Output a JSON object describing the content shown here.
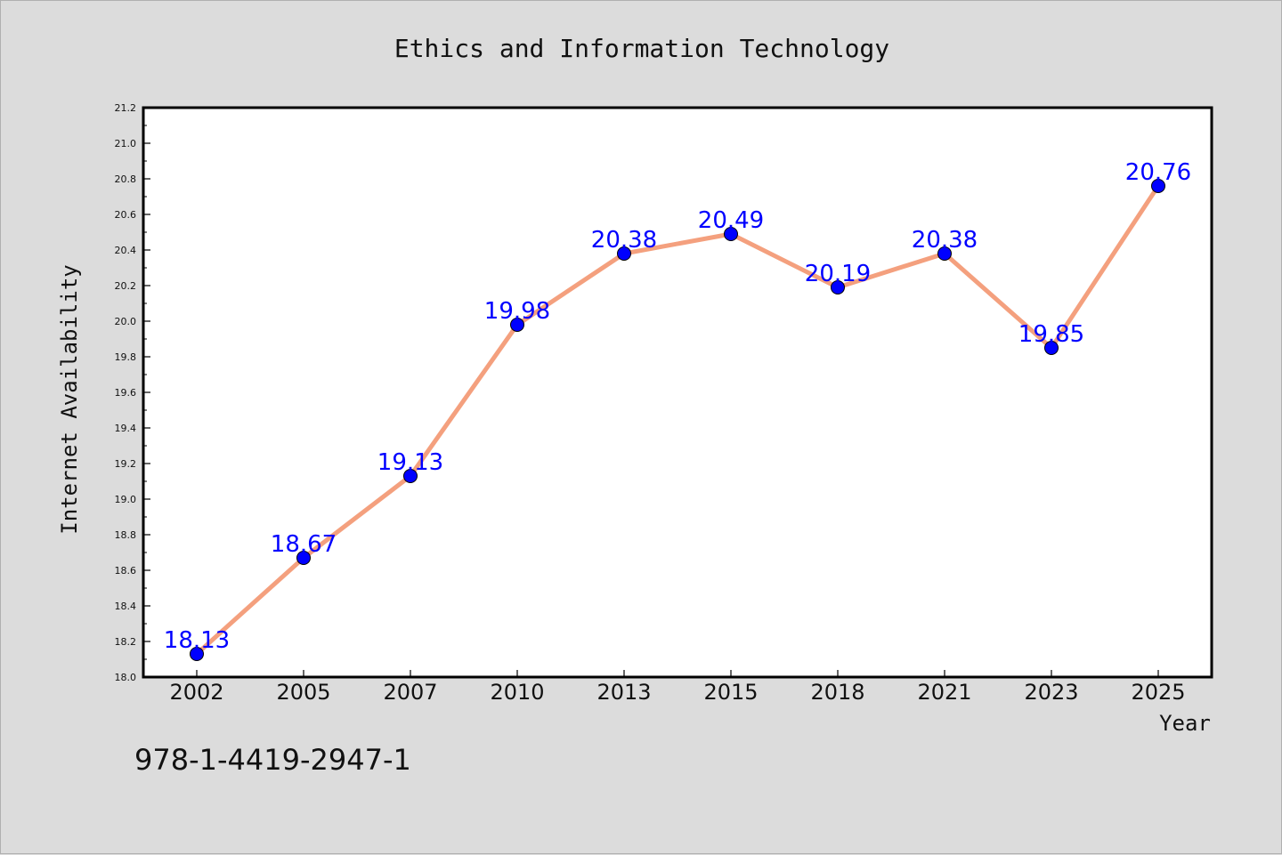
{
  "footer": {
    "isbn": "978-1-4419-2947-1"
  },
  "chart_data": {
    "type": "line",
    "title": "Ethics and Information Technology",
    "xlabel": "Year",
    "ylabel": "Internet Availability",
    "categories": [
      "2002",
      "2005",
      "2007",
      "2010",
      "2013",
      "2015",
      "2018",
      "2021",
      "2023",
      "2025"
    ],
    "series": [
      {
        "values": [
          18.13,
          18.67,
          19.13,
          19.98,
          20.38,
          20.49,
          20.19,
          20.38,
          19.85,
          20.76
        ]
      }
    ],
    "data_labels": [
      "18.13",
      "18.67",
      "19.13",
      "19.98",
      "20.38",
      "20.49",
      "20.19",
      "20.38",
      "19.85",
      "20.76"
    ],
    "yticks": [
      "18.0",
      "18.2",
      "18.4",
      "18.6",
      "18.8",
      "19.0",
      "19.2",
      "19.4",
      "19.6",
      "19.8",
      "20.0",
      "20.2",
      "20.4",
      "20.6",
      "20.8",
      "21.0",
      "21.2"
    ],
    "ylim": [
      18.0,
      21.2
    ],
    "grid": false,
    "line_color": "#f4a07e",
    "marker_color": "#0000ff",
    "label_color": "#0000ff"
  }
}
